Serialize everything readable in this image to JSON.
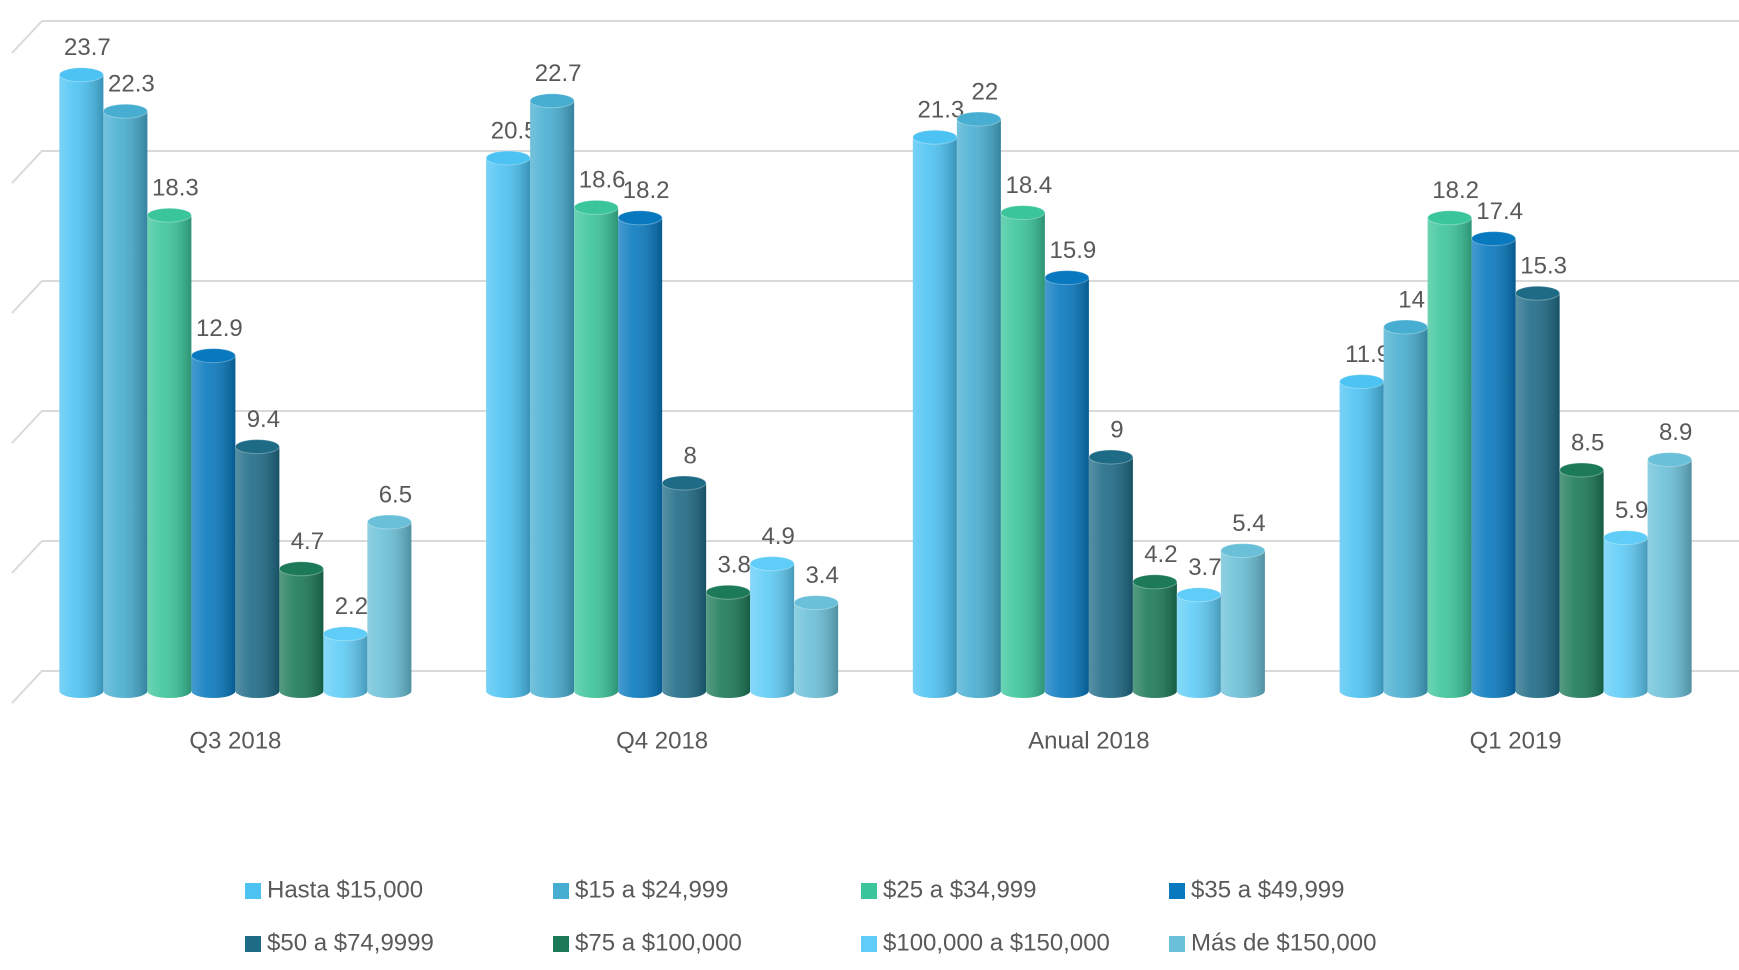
{
  "chart_data": {
    "type": "bar",
    "categories": [
      "Q3 2018",
      "Q4 2018",
      "Anual 2018",
      "Q1 2019"
    ],
    "series": [
      {
        "name": "Hasta $15,000",
        "color": "#4cc3f3",
        "values": [
          23.7,
          20.5,
          21.3,
          11.9
        ]
      },
      {
        "name": "$15 a $24,999",
        "color": "#47aed1",
        "values": [
          22.3,
          22.7,
          22.0,
          14.0
        ]
      },
      {
        "name": "$25 a $34,999",
        "color": "#3ac59a",
        "values": [
          18.3,
          18.6,
          18.4,
          18.2
        ]
      },
      {
        "name": "$35 a $49,999",
        "color": "#0879bf",
        "values": [
          12.9,
          18.2,
          15.9,
          17.4
        ]
      },
      {
        "name": "$50 a $74,9999",
        "color": "#1e6b86",
        "values": [
          9.4,
          8.0,
          9.0,
          15.3
        ]
      },
      {
        "name": "$75 a $100,000",
        "color": "#1c7a58",
        "values": [
          4.7,
          3.8,
          4.2,
          8.5
        ]
      },
      {
        "name": "$100,000 a $150,000",
        "color": "#5fcdf7",
        "values": [
          2.2,
          4.9,
          3.7,
          5.9
        ]
      },
      {
        "name": "Más de $150,000",
        "color": "#6ac0d8",
        "values": [
          6.5,
          3.4,
          5.4,
          8.9
        ]
      }
    ],
    "ylim": [
      0,
      25
    ],
    "yticks": [
      0,
      5,
      10,
      15,
      20,
      25
    ],
    "grid": true
  }
}
